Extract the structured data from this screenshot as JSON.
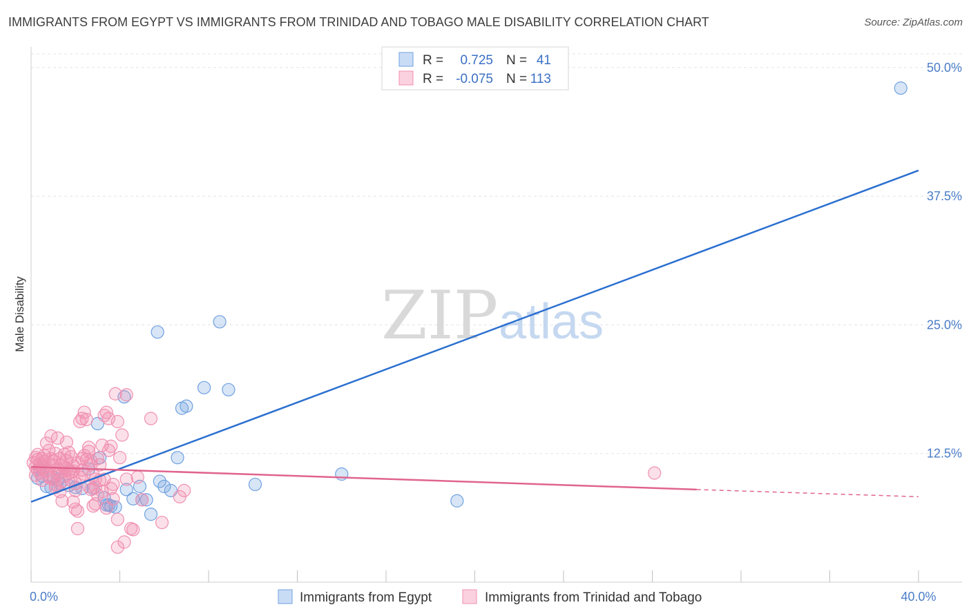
{
  "title": "IMMIGRANTS FROM EGYPT VS IMMIGRANTS FROM TRINIDAD AND TOBAGO MALE DISABILITY CORRELATION CHART",
  "source": "Source: ZipAtlas.com",
  "watermark": {
    "zip": "ZIP",
    "atlas": "atlas"
  },
  "legend_top": [
    {
      "r_label": "R =",
      "r_value": "0.725",
      "n_label": "N =",
      "n_value": "41",
      "color": "#6fa0e0"
    },
    {
      "r_label": "R =",
      "r_value": "-0.075",
      "n_label": "N =",
      "n_value": "113",
      "color": "#f08fb0"
    }
  ],
  "legend_bottom": [
    {
      "label": "Immigrants from Egypt",
      "color": "#6fa0e0"
    },
    {
      "label": "Immigrants from Trinidad and Tobago",
      "color": "#f08fb0"
    }
  ],
  "chart_data": {
    "type": "scatter",
    "title": "IMMIGRANTS FROM EGYPT VS IMMIGRANTS FROM TRINIDAD AND TOBAGO MALE DISABILITY CORRELATION CHART",
    "ylabel": "Male Disability",
    "xlabel": "",
    "xlim": [
      0,
      40
    ],
    "ylim": [
      0,
      52
    ],
    "x_tick_labels": [
      {
        "value": 0,
        "label": "0.0%"
      },
      {
        "value": 40,
        "label": "40.0%"
      }
    ],
    "y_tick_labels": [
      {
        "value": 12.5,
        "label": "12.5%"
      },
      {
        "value": 25,
        "label": "25.0%"
      },
      {
        "value": 37.5,
        "label": "37.5%"
      },
      {
        "value": 50,
        "label": "50.0%"
      }
    ],
    "series": [
      {
        "name": "Immigrants from Egypt",
        "color": "#6fa0e0",
        "line_color": "#2a6fd0",
        "trend": [
          [
            0,
            7.8
          ],
          [
            40,
            40.0
          ]
        ],
        "points": [
          [
            0.3,
            10.1
          ],
          [
            0.5,
            10.3
          ],
          [
            0.7,
            9.3
          ],
          [
            0.9,
            9.2
          ],
          [
            1.3,
            9.6
          ],
          [
            1.7,
            9.4
          ],
          [
            2.0,
            9.2
          ],
          [
            2.3,
            9.1
          ],
          [
            2.6,
            11.0
          ],
          [
            3.0,
            15.4
          ],
          [
            3.1,
            12.1
          ],
          [
            3.3,
            8.2
          ],
          [
            3.4,
            7.5
          ],
          [
            3.6,
            7.4
          ],
          [
            3.8,
            7.3
          ],
          [
            4.2,
            18.0
          ],
          [
            4.3,
            9.0
          ],
          [
            4.6,
            8.1
          ],
          [
            4.9,
            9.3
          ],
          [
            5.0,
            8.0
          ],
          [
            5.2,
            8.0
          ],
          [
            5.4,
            6.6
          ],
          [
            5.7,
            24.3
          ],
          [
            5.8,
            9.8
          ],
          [
            6.0,
            9.3
          ],
          [
            6.3,
            8.9
          ],
          [
            6.6,
            12.1
          ],
          [
            6.8,
            16.9
          ],
          [
            7.0,
            17.1
          ],
          [
            7.8,
            18.9
          ],
          [
            8.5,
            25.3
          ],
          [
            8.9,
            18.7
          ],
          [
            10.1,
            9.5
          ],
          [
            14.0,
            10.5
          ],
          [
            19.2,
            7.9
          ],
          [
            39.2,
            48.0
          ],
          [
            1.2,
            10.0
          ],
          [
            2.8,
            9.1
          ],
          [
            0.4,
            11.0
          ],
          [
            1.0,
            10.2
          ],
          [
            3.5,
            7.5
          ]
        ]
      },
      {
        "name": "Immigrants from Trinidad and Tobago",
        "color": "#f08fb0",
        "line_color": "#e0648e",
        "trend": [
          [
            0,
            11.2
          ],
          [
            30,
            9.0
          ]
        ],
        "trend_dashed": [
          [
            30,
            9.0
          ],
          [
            40,
            8.3
          ]
        ],
        "points": [
          [
            0.1,
            11.6
          ],
          [
            0.2,
            12.1
          ],
          [
            0.2,
            11.2
          ],
          [
            0.3,
            11.9
          ],
          [
            0.3,
            12.4
          ],
          [
            0.4,
            11.4
          ],
          [
            0.4,
            10.6
          ],
          [
            0.5,
            12.0
          ],
          [
            0.5,
            11.1
          ],
          [
            0.6,
            11.7
          ],
          [
            0.6,
            12.3
          ],
          [
            0.7,
            10.8
          ],
          [
            0.7,
            13.5
          ],
          [
            0.8,
            11.5
          ],
          [
            0.8,
            10.2
          ],
          [
            0.9,
            12.0
          ],
          [
            0.9,
            14.2
          ],
          [
            1.0,
            11.3
          ],
          [
            1.0,
            10.0
          ],
          [
            1.1,
            12.5
          ],
          [
            1.1,
            9.5
          ],
          [
            1.2,
            11.0
          ],
          [
            1.2,
            14.0
          ],
          [
            1.3,
            10.6
          ],
          [
            1.3,
            12.0
          ],
          [
            1.4,
            11.4
          ],
          [
            1.4,
            9.8
          ],
          [
            1.5,
            12.4
          ],
          [
            1.5,
            10.3
          ],
          [
            1.6,
            11.8
          ],
          [
            1.6,
            11.0
          ],
          [
            1.7,
            10.9
          ],
          [
            1.7,
            12.6
          ],
          [
            1.8,
            9.9
          ],
          [
            1.8,
            12.2
          ],
          [
            1.9,
            7.8
          ],
          [
            1.9,
            10.8
          ],
          [
            2.0,
            8.9
          ],
          [
            2.0,
            7.1
          ],
          [
            2.1,
            11.6
          ],
          [
            2.1,
            6.9
          ],
          [
            2.2,
            10.2
          ],
          [
            2.2,
            15.6
          ],
          [
            2.3,
            12.0
          ],
          [
            2.3,
            15.9
          ],
          [
            2.4,
            16.5
          ],
          [
            2.4,
            10.5
          ],
          [
            2.5,
            15.8
          ],
          [
            2.5,
            11.9
          ],
          [
            2.6,
            13.1
          ],
          [
            2.6,
            12.7
          ],
          [
            2.7,
            9.0
          ],
          [
            2.7,
            11.4
          ],
          [
            2.8,
            10.4
          ],
          [
            2.8,
            7.4
          ],
          [
            2.9,
            9.2
          ],
          [
            2.9,
            10.0
          ],
          [
            3.0,
            12.0
          ],
          [
            3.1,
            11.4
          ],
          [
            3.2,
            13.3
          ],
          [
            3.2,
            8.8
          ],
          [
            3.3,
            16.2
          ],
          [
            3.3,
            10.0
          ],
          [
            3.4,
            16.5
          ],
          [
            3.5,
            15.9
          ],
          [
            3.5,
            12.8
          ],
          [
            3.6,
            13.2
          ],
          [
            3.7,
            8.1
          ],
          [
            3.7,
            9.5
          ],
          [
            3.8,
            18.3
          ],
          [
            3.9,
            15.6
          ],
          [
            3.9,
            6.1
          ],
          [
            4.0,
            12.1
          ],
          [
            4.1,
            14.3
          ],
          [
            4.2,
            3.9
          ],
          [
            4.3,
            18.2
          ],
          [
            4.3,
            10.0
          ],
          [
            4.5,
            5.2
          ],
          [
            4.6,
            5.1
          ],
          [
            4.8,
            10.2
          ],
          [
            5.0,
            8.0
          ],
          [
            5.4,
            15.9
          ],
          [
            5.9,
            5.8
          ],
          [
            6.7,
            8.3
          ],
          [
            6.9,
            8.9
          ],
          [
            28.1,
            10.6
          ],
          [
            0.3,
            10.9
          ],
          [
            0.6,
            11.2
          ],
          [
            1.0,
            11.8
          ],
          [
            1.2,
            10.5
          ],
          [
            1.5,
            11.1
          ],
          [
            1.8,
            10.7
          ],
          [
            2.0,
            9.6
          ],
          [
            2.3,
            10.9
          ],
          [
            2.6,
            9.3
          ],
          [
            2.9,
            7.6
          ],
          [
            3.1,
            9.9
          ],
          [
            3.4,
            7.2
          ],
          [
            3.6,
            9.1
          ],
          [
            2.1,
            5.2
          ],
          [
            1.4,
            7.9
          ],
          [
            3.9,
            3.4
          ],
          [
            0.8,
            12.8
          ],
          [
            1.6,
            13.6
          ],
          [
            2.4,
            12.3
          ],
          [
            0.5,
            9.9
          ],
          [
            1.1,
            9.2
          ],
          [
            1.9,
            11.3
          ],
          [
            2.7,
            11.8
          ],
          [
            3.0,
            8.5
          ],
          [
            0.2,
            10.4
          ],
          [
            0.9,
            10.1
          ],
          [
            1.3,
            8.8
          ]
        ]
      }
    ]
  }
}
